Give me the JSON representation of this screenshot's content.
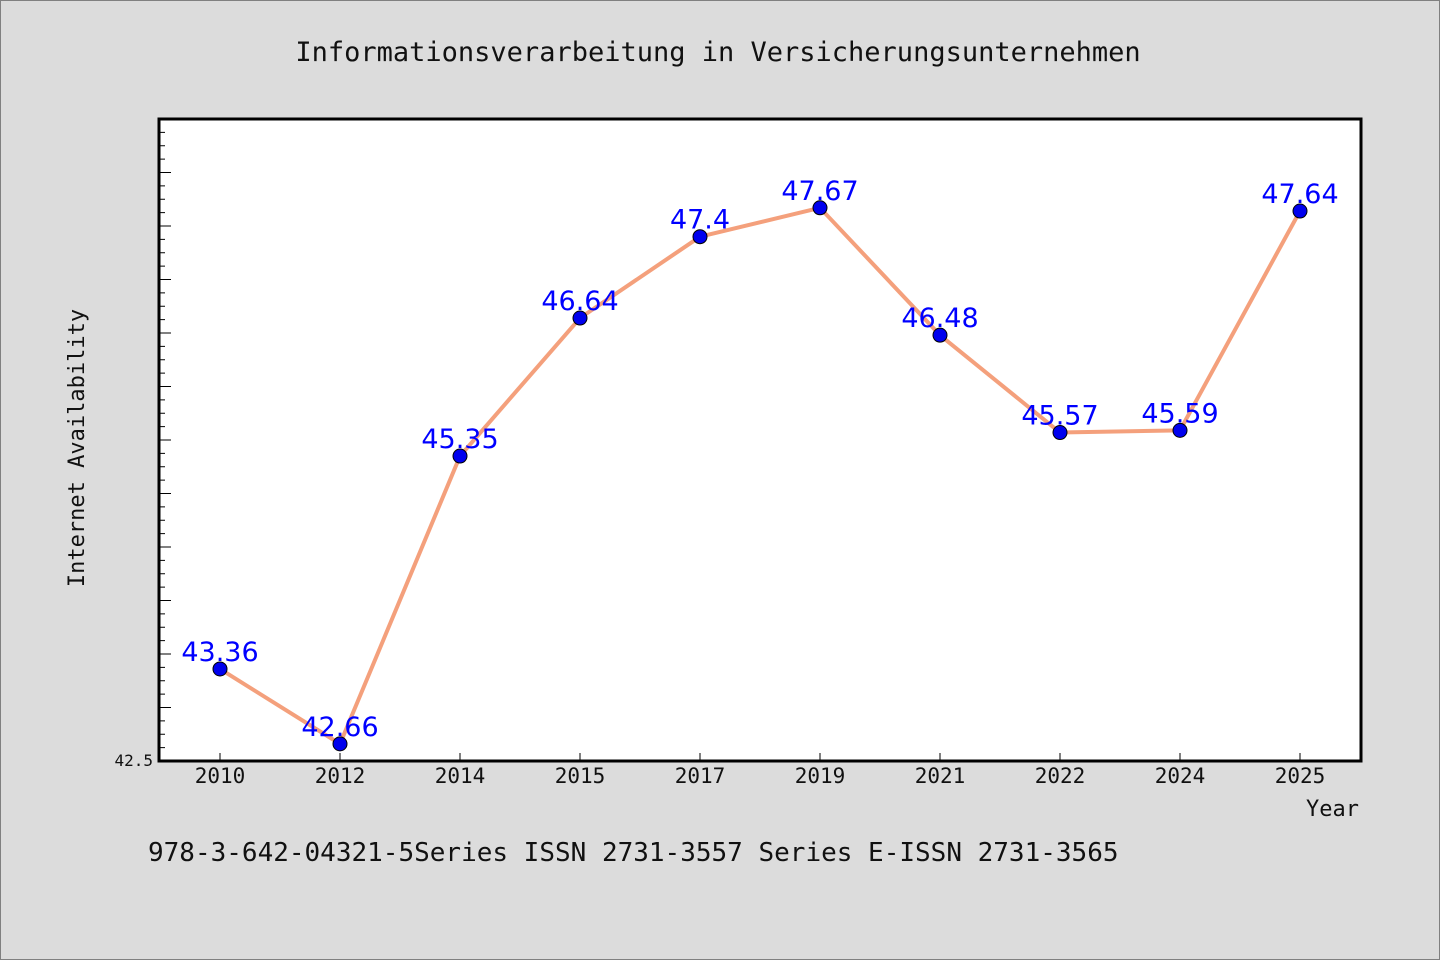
{
  "chart_data": {
    "type": "line",
    "title": "Informationsverarbeitung in Versicherungsunternehmen",
    "xlabel": "Year",
    "ylabel": "Internet Availability",
    "categories": [
      "2010",
      "2012",
      "2014",
      "2015",
      "2017",
      "2019",
      "2021",
      "2022",
      "2024",
      "2025"
    ],
    "values": [
      43.36,
      42.66,
      45.35,
      46.64,
      47.4,
      47.67,
      46.48,
      45.57,
      45.59,
      47.64
    ],
    "data_labels": [
      "43.36",
      "42.66",
      "45.35",
      "46.64",
      "47.4",
      "47.67",
      "46.48",
      "45.57",
      "45.59",
      "47.64"
    ],
    "ylim": [
      42.5,
      48.5
    ],
    "y_min_label": "42.5",
    "grid": false,
    "line_color": "#f4a07c",
    "marker_color": "#0000ee",
    "label_color": "#0000ff"
  },
  "footer": {
    "text": "978-3-642-04321-5Series ISSN 2731-3557 Series E-ISSN 2731-3565"
  }
}
